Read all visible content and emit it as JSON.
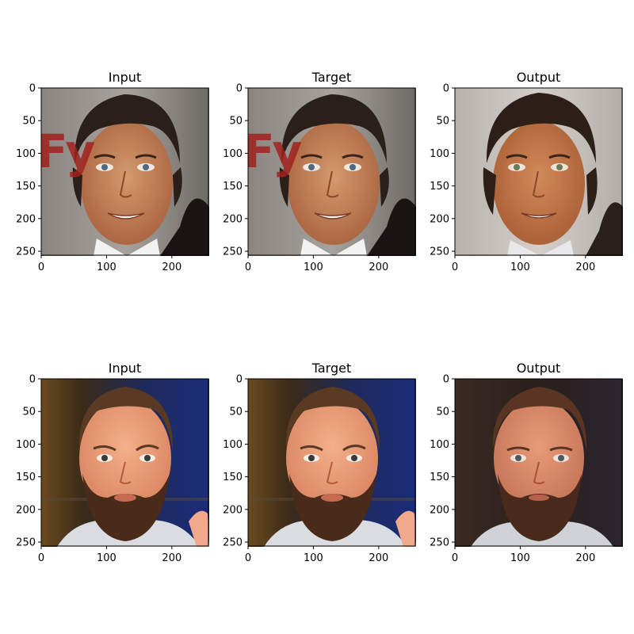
{
  "figure": {
    "rows": [
      {
        "panels": [
          {
            "title": "Input"
          },
          {
            "title": "Target"
          },
          {
            "title": "Output"
          }
        ]
      },
      {
        "panels": [
          {
            "title": "Input"
          },
          {
            "title": "Target"
          },
          {
            "title": "Output"
          }
        ]
      }
    ],
    "axes": {
      "y_ticks": [
        "0",
        "50",
        "100",
        "150",
        "200",
        "250"
      ],
      "x_ticks": [
        "0",
        "100",
        "200"
      ],
      "y_tick_values": [
        0,
        50,
        100,
        150,
        200,
        250
      ],
      "x_tick_values": [
        0,
        100,
        200
      ],
      "range": [
        0,
        256
      ]
    },
    "image_overlay_text": "Fy"
  }
}
